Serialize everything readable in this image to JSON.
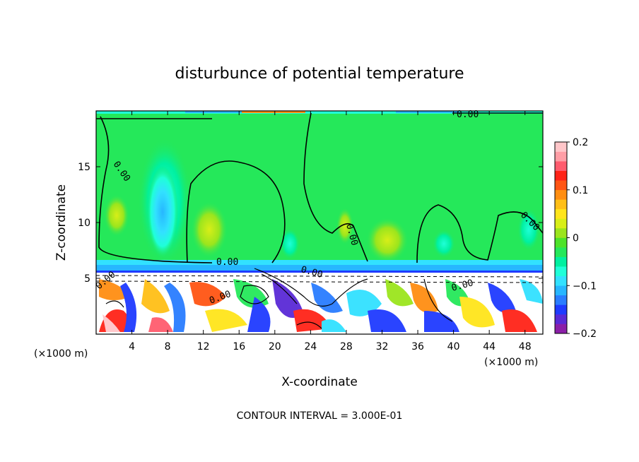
{
  "chart_data": {
    "type": "heatmap",
    "title": "disturbunce of potential temperature",
    "xlabel": "X-coordinate",
    "ylabel": "Z-coordinate",
    "x_unit": "(×1000 m)",
    "y_unit": "(×1000 m)",
    "xlim": [
      0,
      50
    ],
    "ylim": [
      0,
      20
    ],
    "x_ticks": [
      4,
      8,
      12,
      16,
      20,
      24,
      28,
      32,
      36,
      40,
      44,
      48
    ],
    "y_ticks": [
      5,
      10,
      15
    ],
    "colorbar": {
      "min": -0.2,
      "max": 0.2,
      "ticks": [
        0.2,
        0.1,
        0,
        -0.1,
        -0.2
      ],
      "tick_labels": [
        "0.2",
        "0.1",
        "0",
        "−0.1",
        "−0.2"
      ],
      "colors": [
        "#8b1fa8",
        "#5a2ad6",
        "#1f3bff",
        "#2a7dff",
        "#27b6ff",
        "#32e1ff",
        "#1fffd8",
        "#00f0a0",
        "#25e85a",
        "#4de32a",
        "#9be51d",
        "#d8ee18",
        "#ffe51b",
        "#ffbf17",
        "#ff8e12",
        "#ff5514",
        "#ff2318",
        "#ff5c6e",
        "#ff9ea6",
        "#ffc6c9"
      ]
    },
    "contour_labels": [
      "0.00",
      "0.00",
      "0.00",
      "0.00",
      "0.00",
      "0.00",
      "0.00",
      "0.00",
      "0.00"
    ],
    "footer": "CONTOUR INTERVAL = 3.000E-01"
  }
}
